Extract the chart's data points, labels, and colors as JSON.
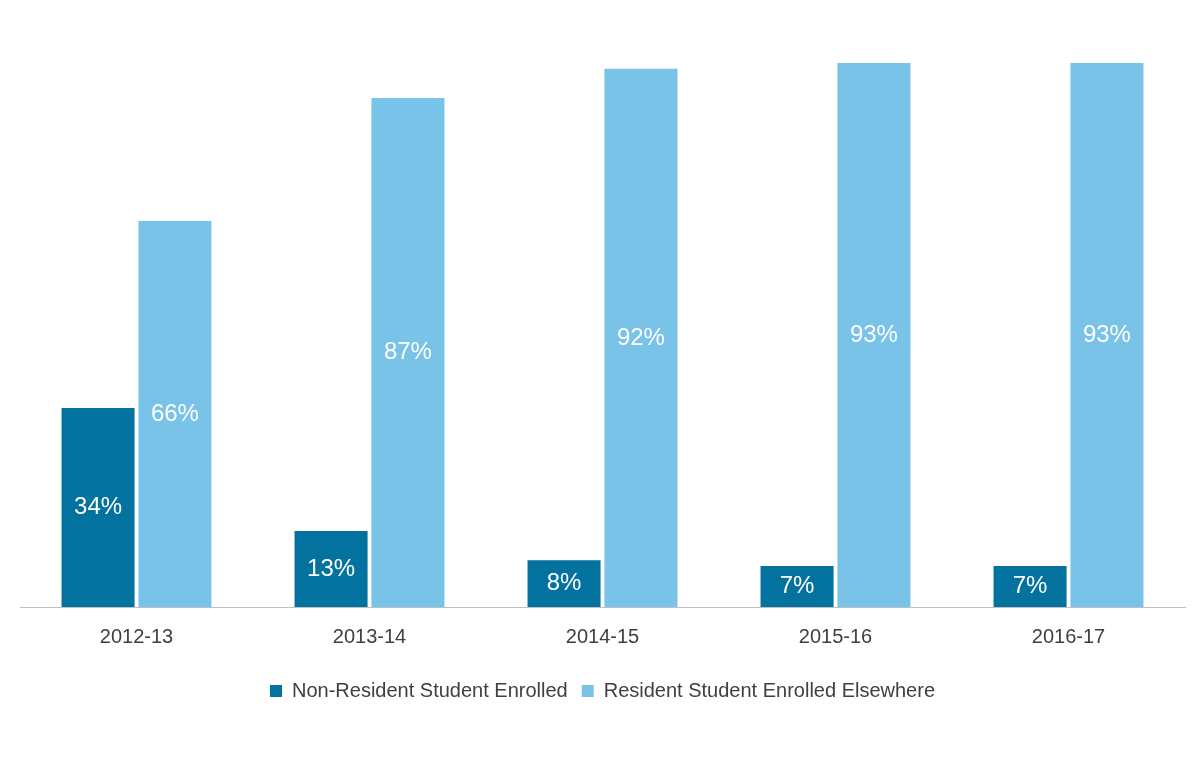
{
  "chart_data": {
    "type": "bar",
    "categories": [
      "2012-13",
      "2013-14",
      "2014-15",
      "2015-16",
      "2016-17"
    ],
    "series": [
      {
        "name": "Non-Resident Student Enrolled",
        "color": "#03729e",
        "values": [
          34,
          13,
          8,
          7,
          7
        ],
        "value_labels": [
          "34%",
          "13%",
          "8%",
          "7%",
          "7%"
        ]
      },
      {
        "name": "Resident Student Enrolled Elsewhere",
        "color": "#79c2e8",
        "values": [
          66,
          87,
          92,
          93,
          93
        ],
        "value_labels": [
          "66%",
          "87%",
          "92%",
          "93%",
          "93%"
        ]
      }
    ],
    "grid": false,
    "legend": "bottom"
  }
}
